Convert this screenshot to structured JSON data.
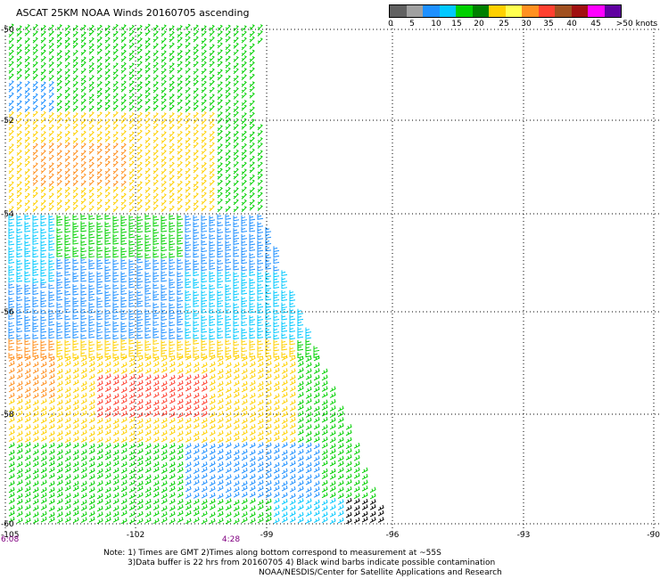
{
  "title": "ASCAT 25KM NOAA Winds 20160705 ascending",
  "legend": {
    "colors": [
      "#606060",
      "#a0a0a0",
      "#1e90ff",
      "#00c8ff",
      "#00d000",
      "#008000",
      "#ffd000",
      "#ffff50",
      "#ff9020",
      "#ff4030",
      "#a05020",
      "#a01010",
      "#ff00ff",
      "#6000a0"
    ],
    "labels": [
      "0",
      "5",
      "10",
      "15",
      "20",
      "25",
      "30",
      "35",
      "40",
      "45",
      ">50 knots"
    ]
  },
  "axes": {
    "lat_labels": [
      "-50",
      "-52",
      "-54",
      "-56",
      "-58",
      "-60"
    ],
    "lon_labels": [
      "-105",
      "-102",
      "-99",
      "-96",
      "-93",
      "-90"
    ],
    "time_labels": [
      "6:08",
      "4:28"
    ]
  },
  "wind_speed_colors": {
    "0-5": "#606060",
    "5-10": "#1e90ff",
    "10-15": "#00c8ff",
    "15-20": "#00d000",
    "20-25": "#ffd000",
    "25-30": "#ff9020",
    "30-35": "#ff4030",
    "35-40": "#a05020",
    "contaminated": "#000000"
  },
  "notes": {
    "line1": "Note: 1) Times are GMT  2)Times along bottom correspond to measurement at ~55S",
    "line2": "3)Data buffer is 22 hrs from 20160705  4) Black wind barbs indicate possible contamination",
    "line3": "NOAA/NESDIS/Center for Satellite Applications and Research"
  }
}
